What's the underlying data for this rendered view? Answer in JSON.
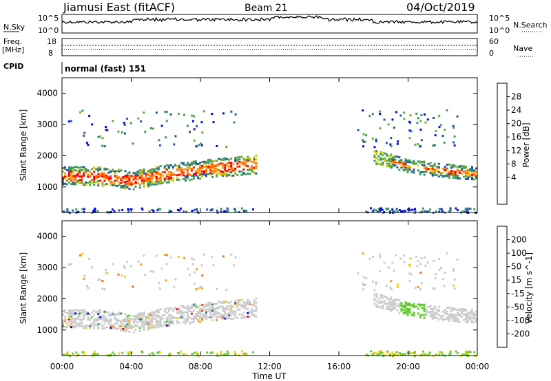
{
  "header": {
    "station": "Jiamusi East (fitACF)",
    "beam": "Beam 21",
    "date": "04/Oct/2019"
  },
  "strips": {
    "nsky_label": "N.Sky",
    "nsearch_label": "N.Search",
    "nsky_ticks": [
      "10^5",
      "10^0"
    ],
    "nsearch_ticks": [
      "10^5",
      "10^0"
    ],
    "freq_label": "Freq.",
    "freq_unit": "[MHz]",
    "freq_ticks": [
      "18",
      "8"
    ],
    "nave_label": "Nave",
    "nave_ticks": [
      "60",
      "0"
    ],
    "cpid_label": "CPID",
    "cpid_value": "normal (fast) 151"
  },
  "chart_data": [
    {
      "type": "heatmap",
      "panel": "power",
      "ylabel": "Slant Range [km]",
      "colorbar_label": "Power [dB]",
      "colorbar_ticks": [
        "28",
        "24",
        "20",
        "16",
        "12",
        "8",
        "4"
      ],
      "colorbar_colors": [
        "#ff0000",
        "#ff6600",
        "#ff9900",
        "#ffcc00",
        "#cccc00",
        "#66aa33",
        "#339966",
        "#2255aa",
        "#0000ff"
      ],
      "ylim": [
        180,
        4500
      ],
      "yticks": [
        "4000",
        "3000",
        "2000",
        "1000"
      ],
      "xlim_hours": [
        0,
        24
      ],
      "xticks": [
        "00:00",
        "04:00",
        "08:00",
        "12:00",
        "16:00",
        "20:00",
        "00:00"
      ],
      "main_echo_band_km": [
        [
          0,
          1400
        ],
        [
          2,
          1380
        ],
        [
          4,
          1250
        ],
        [
          6,
          1450
        ],
        [
          8,
          1600
        ],
        [
          10,
          1700
        ],
        [
          11,
          1750
        ],
        [
          18,
          2000
        ],
        [
          20,
          1700
        ],
        [
          22,
          1550
        ],
        [
          24,
          1450
        ]
      ]
    },
    {
      "type": "heatmap",
      "panel": "velocity",
      "ylabel": "Slant Range [km]",
      "colorbar_label": "Velocity [m s^-1]",
      "colorbar_ticks": [
        "200",
        "100",
        "50",
        "15",
        "-15",
        "-50",
        "-100",
        "-200"
      ],
      "colorbar_colors": [
        "#0000cc",
        "#336699",
        "#339966",
        "#66cc33",
        "#cccccc",
        "#ffcc00",
        "#ff9900",
        "#ff6600",
        "#ff0000"
      ],
      "ylim": [
        180,
        4500
      ],
      "yticks": [
        "4000",
        "3000",
        "2000",
        "1000"
      ],
      "xlim_hours": [
        0,
        24
      ],
      "xticks": [
        "00:00",
        "04:00",
        "08:00",
        "12:00",
        "16:00",
        "20:00",
        "00:00"
      ],
      "xlabel": "Time UT"
    }
  ]
}
